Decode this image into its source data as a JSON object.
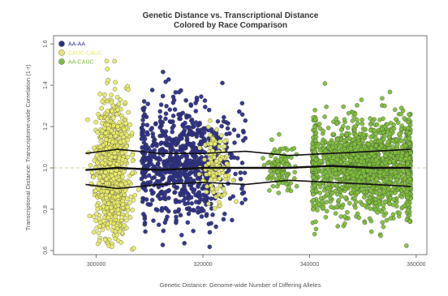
{
  "chart_data": {
    "type": "scatter",
    "title": "Genetic Distance vs. Transcriptional Distance",
    "subtitle": "Colored by Race Comparison",
    "xlabel": "Genetic Distance: Genome-wide Number of Differing Alleles",
    "ylabel": "Transcriptional Distance: Transcriptome-wide Correlation (1-r)",
    "xlim": [
      292000,
      362000
    ],
    "ylim": [
      0.58,
      1.64
    ],
    "x_ticks": [
      "300000",
      "320000",
      "340000",
      "360000"
    ],
    "x_tick_values": [
      300000,
      320000,
      340000,
      360000
    ],
    "y_ticks": [
      "0.6",
      "0.8",
      "1.0",
      "1.2",
      "1.4",
      "1.6"
    ],
    "y_tick_values": [
      0.6,
      0.8,
      1.0,
      1.2,
      1.4,
      1.6
    ],
    "reference_line_y": 1.0,
    "legend_position": "top-left",
    "series": [
      {
        "name": "AA-AA",
        "color": "#2b2f86",
        "clusters": [
          {
            "x_center": 316500,
            "x_spread": 5200,
            "y_center": 1.02,
            "y_spread": 0.14,
            "count": 800,
            "x_min": 308500,
            "x_max": 328000
          }
        ]
      },
      {
        "name": "CAUC-CAUC",
        "color": "#e8ea6a",
        "clusters": [
          {
            "x_center": 303000,
            "x_spread": 1600,
            "y_center": 0.99,
            "y_spread": 0.17,
            "count": 900,
            "x_min": 297000,
            "x_max": 308500
          },
          {
            "x_center": 322500,
            "x_spread": 1300,
            "y_center": 1.0,
            "y_spread": 0.09,
            "count": 120,
            "x_min": 318500,
            "x_max": 326500
          }
        ]
      },
      {
        "name": "AA-CAUC",
        "color": "#7fbe3c",
        "clusters": [
          {
            "x_center": 351000,
            "x_spread": 7000,
            "y_center": 1.01,
            "y_spread": 0.11,
            "count": 1700,
            "x_min": 340500,
            "x_max": 359000
          },
          {
            "x_center": 334500,
            "x_spread": 1400,
            "y_center": 1.0,
            "y_spread": 0.06,
            "count": 100,
            "x_min": 331000,
            "x_max": 338000
          }
        ]
      }
    ],
    "trend_lines": [
      {
        "name": "upper",
        "points": [
          [
            298000,
            1.07
          ],
          [
            304000,
            1.09
          ],
          [
            312000,
            1.07
          ],
          [
            320000,
            1.07
          ],
          [
            328000,
            1.08
          ],
          [
            336000,
            1.06
          ],
          [
            344000,
            1.07
          ],
          [
            352000,
            1.08
          ],
          [
            359000,
            1.09
          ]
        ]
      },
      {
        "name": "middle",
        "points": [
          [
            298000,
            0.99
          ],
          [
            304000,
            1.0
          ],
          [
            312000,
            0.99
          ],
          [
            320000,
            1.0
          ],
          [
            328000,
            1.0
          ],
          [
            336000,
            1.0
          ],
          [
            344000,
            1.01
          ],
          [
            352000,
            1.0
          ],
          [
            359000,
            1.0
          ]
        ]
      },
      {
        "name": "lower",
        "points": [
          [
            298000,
            0.92
          ],
          [
            304000,
            0.9
          ],
          [
            312000,
            0.92
          ],
          [
            320000,
            0.93
          ],
          [
            328000,
            0.92
          ],
          [
            336000,
            0.94
          ],
          [
            344000,
            0.93
          ],
          [
            352000,
            0.92
          ],
          [
            359000,
            0.91
          ]
        ]
      }
    ]
  }
}
